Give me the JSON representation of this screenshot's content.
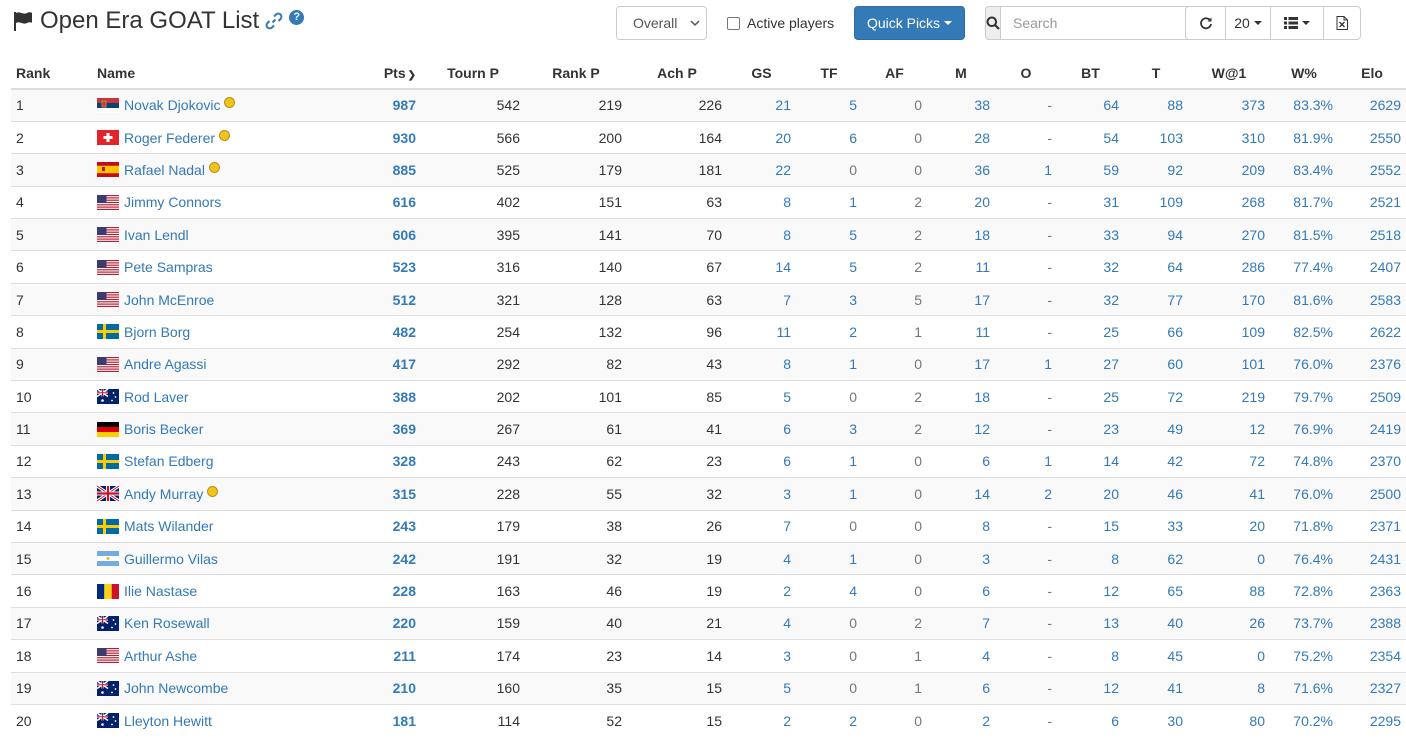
{
  "header": {
    "title": "Open Era GOAT List",
    "help_label": "?"
  },
  "controls": {
    "filter_selected": "Overall",
    "active_players_label": "Active players",
    "active_players_checked": false,
    "quick_picks_label": "Quick Picks",
    "search_placeholder": "Search",
    "search_value": "",
    "page_size": "20"
  },
  "columns": [
    "Rank",
    "Name",
    "Pts",
    "Tourn P",
    "Rank P",
    "Ach P",
    "GS",
    "TF",
    "AF",
    "M",
    "O",
    "BT",
    "T",
    "W@1",
    "W%",
    "Elo"
  ],
  "sort_column": "Pts",
  "sort_direction": "descending",
  "rows": [
    {
      "rank": "1",
      "flag": "serbia-flag",
      "name": "Novak Djokovic",
      "goat": true,
      "pts": "987",
      "tourn": "542",
      "rankp": "219",
      "ach": "226",
      "gs": "21",
      "tf": "5",
      "af": "0",
      "m": "38",
      "o": "-",
      "bt": "64",
      "t": "88",
      "w1": "373",
      "wpct": "83.3%",
      "elo": "2629"
    },
    {
      "rank": "2",
      "flag": "switzerland-flag",
      "name": "Roger Federer",
      "goat": true,
      "pts": "930",
      "tourn": "566",
      "rankp": "200",
      "ach": "164",
      "gs": "20",
      "tf": "6",
      "af": "0",
      "m": "28",
      "o": "-",
      "bt": "54",
      "t": "103",
      "w1": "310",
      "wpct": "81.9%",
      "elo": "2550"
    },
    {
      "rank": "3",
      "flag": "spain-flag",
      "name": "Rafael Nadal",
      "goat": true,
      "pts": "885",
      "tourn": "525",
      "rankp": "179",
      "ach": "181",
      "gs": "22",
      "tf": "0",
      "af": "0",
      "m": "36",
      "o": "1",
      "bt": "59",
      "t": "92",
      "w1": "209",
      "wpct": "83.4%",
      "elo": "2552"
    },
    {
      "rank": "4",
      "flag": "usa-flag",
      "name": "Jimmy Connors",
      "goat": false,
      "pts": "616",
      "tourn": "402",
      "rankp": "151",
      "ach": "63",
      "gs": "8",
      "tf": "1",
      "af": "2",
      "m": "20",
      "o": "-",
      "bt": "31",
      "t": "109",
      "w1": "268",
      "wpct": "81.7%",
      "elo": "2521"
    },
    {
      "rank": "5",
      "flag": "usa-flag",
      "name": "Ivan Lendl",
      "goat": false,
      "pts": "606",
      "tourn": "395",
      "rankp": "141",
      "ach": "70",
      "gs": "8",
      "tf": "5",
      "af": "2",
      "m": "18",
      "o": "-",
      "bt": "33",
      "t": "94",
      "w1": "270",
      "wpct": "81.5%",
      "elo": "2518"
    },
    {
      "rank": "6",
      "flag": "usa-flag",
      "name": "Pete Sampras",
      "goat": false,
      "pts": "523",
      "tourn": "316",
      "rankp": "140",
      "ach": "67",
      "gs": "14",
      "tf": "5",
      "af": "2",
      "m": "11",
      "o": "-",
      "bt": "32",
      "t": "64",
      "w1": "286",
      "wpct": "77.4%",
      "elo": "2407"
    },
    {
      "rank": "7",
      "flag": "usa-flag",
      "name": "John McEnroe",
      "goat": false,
      "pts": "512",
      "tourn": "321",
      "rankp": "128",
      "ach": "63",
      "gs": "7",
      "tf": "3",
      "af": "5",
      "m": "17",
      "o": "-",
      "bt": "32",
      "t": "77",
      "w1": "170",
      "wpct": "81.6%",
      "elo": "2583"
    },
    {
      "rank": "8",
      "flag": "sweden-flag",
      "name": "Bjorn Borg",
      "goat": false,
      "pts": "482",
      "tourn": "254",
      "rankp": "132",
      "ach": "96",
      "gs": "11",
      "tf": "2",
      "af": "1",
      "m": "11",
      "o": "-",
      "bt": "25",
      "t": "66",
      "w1": "109",
      "wpct": "82.5%",
      "elo": "2622"
    },
    {
      "rank": "9",
      "flag": "usa-flag",
      "name": "Andre Agassi",
      "goat": false,
      "pts": "417",
      "tourn": "292",
      "rankp": "82",
      "ach": "43",
      "gs": "8",
      "tf": "1",
      "af": "0",
      "m": "17",
      "o": "1",
      "bt": "27",
      "t": "60",
      "w1": "101",
      "wpct": "76.0%",
      "elo": "2376"
    },
    {
      "rank": "10",
      "flag": "australia-flag",
      "name": "Rod Laver",
      "goat": false,
      "pts": "388",
      "tourn": "202",
      "rankp": "101",
      "ach": "85",
      "gs": "5",
      "tf": "0",
      "af": "2",
      "m": "18",
      "o": "-",
      "bt": "25",
      "t": "72",
      "w1": "219",
      "wpct": "79.7%",
      "elo": "2509"
    },
    {
      "rank": "11",
      "flag": "germany-flag",
      "name": "Boris Becker",
      "goat": false,
      "pts": "369",
      "tourn": "267",
      "rankp": "61",
      "ach": "41",
      "gs": "6",
      "tf": "3",
      "af": "2",
      "m": "12",
      "o": "-",
      "bt": "23",
      "t": "49",
      "w1": "12",
      "wpct": "76.9%",
      "elo": "2419"
    },
    {
      "rank": "12",
      "flag": "sweden-flag",
      "name": "Stefan Edberg",
      "goat": false,
      "pts": "328",
      "tourn": "243",
      "rankp": "62",
      "ach": "23",
      "gs": "6",
      "tf": "1",
      "af": "0",
      "m": "6",
      "o": "1",
      "bt": "14",
      "t": "42",
      "w1": "72",
      "wpct": "74.8%",
      "elo": "2370"
    },
    {
      "rank": "13",
      "flag": "uk-flag",
      "name": "Andy Murray",
      "goat": true,
      "pts": "315",
      "tourn": "228",
      "rankp": "55",
      "ach": "32",
      "gs": "3",
      "tf": "1",
      "af": "0",
      "m": "14",
      "o": "2",
      "bt": "20",
      "t": "46",
      "w1": "41",
      "wpct": "76.0%",
      "elo": "2500"
    },
    {
      "rank": "14",
      "flag": "sweden-flag",
      "name": "Mats Wilander",
      "goat": false,
      "pts": "243",
      "tourn": "179",
      "rankp": "38",
      "ach": "26",
      "gs": "7",
      "tf": "0",
      "af": "0",
      "m": "8",
      "o": "-",
      "bt": "15",
      "t": "33",
      "w1": "20",
      "wpct": "71.8%",
      "elo": "2371"
    },
    {
      "rank": "15",
      "flag": "argentina-flag",
      "name": "Guillermo Vilas",
      "goat": false,
      "pts": "242",
      "tourn": "191",
      "rankp": "32",
      "ach": "19",
      "gs": "4",
      "tf": "1",
      "af": "0",
      "m": "3",
      "o": "-",
      "bt": "8",
      "t": "62",
      "w1": "0",
      "wpct": "76.4%",
      "elo": "2431"
    },
    {
      "rank": "16",
      "flag": "romania-flag",
      "name": "Ilie Nastase",
      "goat": false,
      "pts": "228",
      "tourn": "163",
      "rankp": "46",
      "ach": "19",
      "gs": "2",
      "tf": "4",
      "af": "0",
      "m": "6",
      "o": "-",
      "bt": "12",
      "t": "65",
      "w1": "88",
      "wpct": "72.8%",
      "elo": "2363"
    },
    {
      "rank": "17",
      "flag": "australia-flag",
      "name": "Ken Rosewall",
      "goat": false,
      "pts": "220",
      "tourn": "159",
      "rankp": "40",
      "ach": "21",
      "gs": "4",
      "tf": "0",
      "af": "2",
      "m": "7",
      "o": "-",
      "bt": "13",
      "t": "40",
      "w1": "26",
      "wpct": "73.7%",
      "elo": "2388"
    },
    {
      "rank": "18",
      "flag": "usa-flag",
      "name": "Arthur Ashe",
      "goat": false,
      "pts": "211",
      "tourn": "174",
      "rankp": "23",
      "ach": "14",
      "gs": "3",
      "tf": "0",
      "af": "1",
      "m": "4",
      "o": "-",
      "bt": "8",
      "t": "45",
      "w1": "0",
      "wpct": "75.2%",
      "elo": "2354"
    },
    {
      "rank": "19",
      "flag": "australia-flag",
      "name": "John Newcombe",
      "goat": false,
      "pts": "210",
      "tourn": "160",
      "rankp": "35",
      "ach": "15",
      "gs": "5",
      "tf": "0",
      "af": "1",
      "m": "6",
      "o": "-",
      "bt": "12",
      "t": "41",
      "w1": "8",
      "wpct": "71.6%",
      "elo": "2327"
    },
    {
      "rank": "20",
      "flag": "australia-flag",
      "name": "Lleyton Hewitt",
      "goat": false,
      "pts": "181",
      "tourn": "114",
      "rankp": "52",
      "ach": "15",
      "gs": "2",
      "tf": "2",
      "af": "0",
      "m": "2",
      "o": "-",
      "bt": "6",
      "t": "30",
      "w1": "80",
      "wpct": "70.2%",
      "elo": "2295"
    }
  ],
  "colors": {
    "link": "#337ab7",
    "primary_button": "#337ab7",
    "stripe": "#f9f9f9",
    "border": "#dddddd",
    "goat_badge": "#f0c419"
  }
}
